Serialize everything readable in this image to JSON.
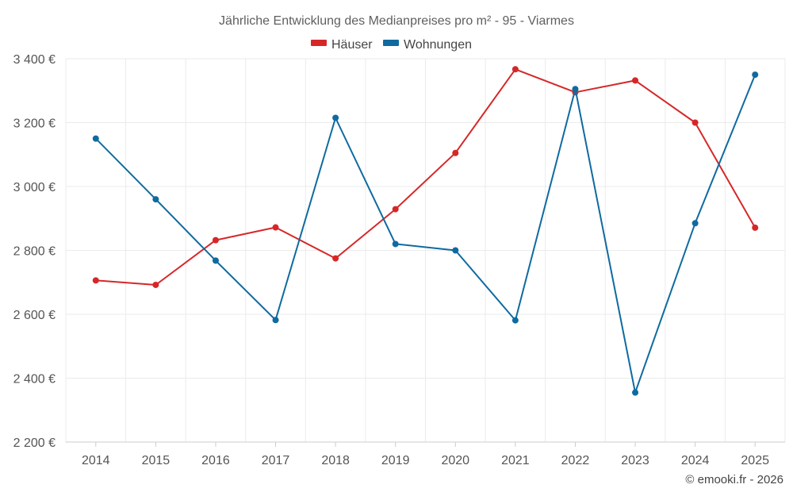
{
  "chart_data": {
    "type": "line",
    "title": "Jährliche Entwicklung des Medianpreises pro m² - 95 - Viarmes",
    "xlabel": "",
    "ylabel": "",
    "categories": [
      "2014",
      "2015",
      "2016",
      "2017",
      "2018",
      "2019",
      "2020",
      "2021",
      "2022",
      "2023",
      "2024",
      "2025"
    ],
    "y_ticks": [
      "2 200 €",
      "2 400 €",
      "2 600 €",
      "2 800 €",
      "3 000 €",
      "3 200 €",
      "3 400 €"
    ],
    "ylim": [
      2200,
      3400
    ],
    "grid": true,
    "legend_position": "top-center",
    "series": [
      {
        "name": "Häuser",
        "color": "#d62728",
        "values": [
          2706,
          2692,
          2832,
          2872,
          2775,
          2929,
          3105,
          3367,
          3295,
          3332,
          3200,
          2871
        ]
      },
      {
        "name": "Wohnungen",
        "color": "#0f6aa0",
        "values": [
          3150,
          2960,
          2768,
          2582,
          3215,
          2820,
          2800,
          2581,
          3305,
          2355,
          2885,
          3350
        ]
      }
    ]
  },
  "credit": "© emooki.fr - 2026"
}
